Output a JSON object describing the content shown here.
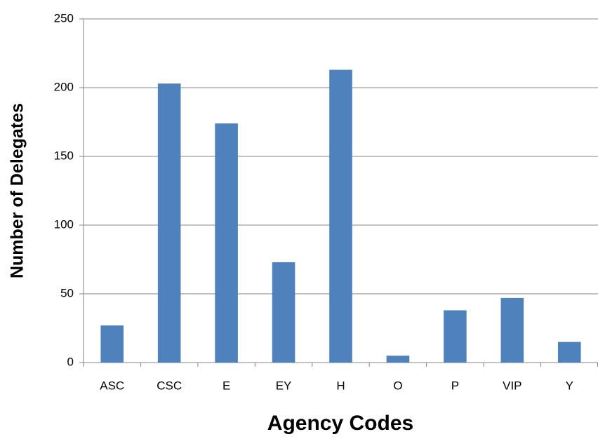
{
  "chart_data": {
    "type": "bar",
    "x_label": "Agency Codes",
    "y_label": "Number of Delegates",
    "categories": [
      "ASC",
      "CSC",
      "E",
      "EY",
      "H",
      "O",
      "P",
      "VIP",
      "Y"
    ],
    "values": [
      27,
      203,
      174,
      73,
      213,
      5,
      38,
      47,
      15
    ],
    "color": "#4f81bd",
    "ylim": [
      0,
      250
    ],
    "yticks": [
      0,
      50,
      100,
      150,
      200,
      250
    ],
    "grid": true
  }
}
